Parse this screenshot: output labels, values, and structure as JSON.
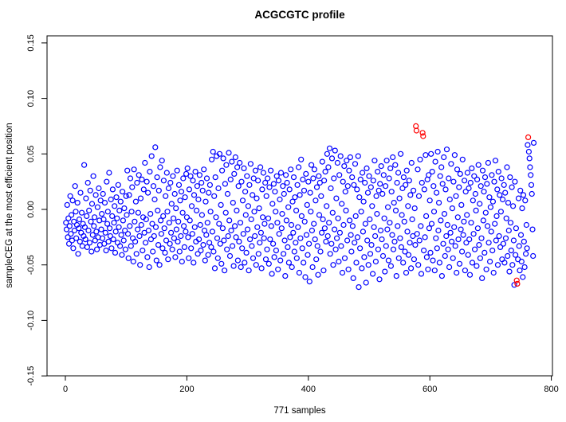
{
  "title": "ACGCGTC profile",
  "chart_data": {
    "type": "scatter",
    "title": "ACGCGTC profile",
    "xlabel": "771 samples",
    "ylabel": "sampleCEG at the most efficient position",
    "x_tick_labels": [
      "0",
      "200",
      "400",
      "600",
      "800"
    ],
    "x_ticks": [
      0,
      200,
      400,
      600,
      800
    ],
    "y_tick_labels": [
      "0.15",
      "0.10",
      "0.05",
      "0.00",
      "-0.05",
      "-0.10",
      "-0.15"
    ],
    "y_ticks": [
      0.15,
      0.1,
      0.05,
      0.0,
      -0.05,
      -0.1,
      -0.15
    ],
    "xlim": [
      -30,
      805
    ],
    "ylim": [
      -0.157,
      0.157
    ],
    "grid": false,
    "legend": "none",
    "point_color": "#0000ff",
    "outlier_color": "#ff0000",
    "n_samples": 771,
    "x_is_sample_index": true,
    "outlier_indices": [
      577,
      578,
      588,
      589,
      743,
      744,
      762
    ],
    "y": [
      -0.012,
      -0.018,
      0.004,
      -0.025,
      -0.008,
      -0.031,
      -0.015,
      0.012,
      -0.022,
      -0.005,
      -0.028,
      0.008,
      -0.035,
      -0.011,
      -0.019,
      0.021,
      -0.002,
      -0.026,
      -0.014,
      0.006,
      -0.04,
      -0.017,
      -0.009,
      -0.029,
      0.015,
      -0.021,
      -0.003,
      -0.033,
      -0.013,
      -0.024,
      0.04,
      -0.016,
      -0.027,
      0.01,
      -0.006,
      -0.034,
      0.024,
      -0.019,
      -0.001,
      -0.03,
      0.017,
      -0.011,
      -0.038,
      0.005,
      -0.023,
      0.03,
      -0.015,
      -0.007,
      -0.028,
      0.013,
      -0.02,
      -0.036,
      0.002,
      -0.025,
      0.019,
      -0.01,
      -0.032,
      0.008,
      -0.018,
      -0.004,
      -0.026,
      0.014,
      -0.009,
      -0.031,
      0.006,
      -0.021,
      -0.037,
      0.025,
      -0.013,
      -0.002,
      -0.029,
      0.033,
      -0.017,
      -0.024,
      0.009,
      -0.035,
      -0.006,
      0.018,
      -0.027,
      -0.012,
      0.003,
      -0.039,
      -0.02,
      0.011,
      -0.008,
      -0.03,
      0.022,
      -0.016,
      -0.001,
      -0.033,
      0.007,
      -0.023,
      -0.041,
      0.016,
      -0.01,
      -0.028,
      0.001,
      -0.019,
      -0.036,
      0.012,
      -0.005,
      0.035,
      -0.022,
      -0.044,
      0.013,
      -0.015,
      0.028,
      -0.033,
      -0.002,
      0.02,
      -0.026,
      -0.047,
      0.036,
      -0.011,
      -0.029,
      0.007,
      -0.04,
      0.024,
      -0.018,
      -0.003,
      0.031,
      -0.024,
      -0.05,
      0.01,
      -0.014,
      0.027,
      -0.037,
      -0.007,
      0.018,
      -0.021,
      0.042,
      -0.03,
      -0.009,
      0.025,
      -0.043,
      0.015,
      -0.019,
      -0.052,
      0.034,
      -0.004,
      -0.027,
      0.048,
      -0.013,
      -0.038,
      0.021,
      -0.024,
      0.009,
      0.056,
      -0.016,
      -0.046,
      0.029,
      -0.001,
      -0.032,
      0.017,
      -0.05,
      0.038,
      -0.01,
      -0.022,
      0.044,
      -0.035,
      -0.006,
      0.026,
      -0.017,
      -0.039,
      0.012,
      -0.028,
      0.033,
      -0.002,
      -0.045,
      0.019,
      -0.012,
      -0.031,
      0.024,
      -0.021,
      0.005,
      -0.036,
      0.03,
      -0.008,
      -0.026,
      0.014,
      -0.043,
      0.001,
      -0.018,
      0.035,
      -0.029,
      -0.011,
      0.022,
      -0.038,
      0.008,
      -0.024,
      0.016,
      -0.047,
      -0.003,
      0.028,
      -0.015,
      -0.034,
      0.011,
      -0.02,
      0.032,
      -0.007,
      0.037,
      -0.025,
      -0.044,
      0.018,
      -0.01,
      0.03,
      -0.035,
      0.003,
      -0.022,
      0.026,
      -0.048,
      0.013,
      -0.016,
      0.034,
      -0.029,
      -0.001,
      0.021,
      -0.04,
      0.009,
      -0.027,
      0.031,
      -0.014,
      -0.037,
      0.024,
      -0.005,
      0.017,
      -0.032,
      0.036,
      -0.019,
      -0.046,
      0.007,
      -0.023,
      0.028,
      -0.012,
      -0.041,
      0.015,
      -0.03,
      0.022,
      -0.002,
      -0.034,
      0.045,
      -0.02,
      0.052,
      -0.038,
      0.012,
      -0.053,
      0.029,
      -0.007,
      0.048,
      -0.026,
      -0.044,
      0.019,
      -0.013,
      0.05,
      -0.031,
      0.004,
      -0.049,
      0.035,
      -0.017,
      0.046,
      -0.028,
      -0.055,
      0.023,
      -0.003,
      0.04,
      -0.036,
      0.014,
      -0.024,
      0.051,
      -0.01,
      -0.042,
      0.027,
      -0.019,
      0.043,
      -0.033,
      0.006,
      -0.051,
      0.032,
      -0.015,
      0.047,
      -0.025,
      -0.001,
      0.038,
      -0.046,
      0.021,
      -0.029,
      0.042,
      -0.012,
      -0.052,
      0.025,
      -0.035,
      0.008,
      -0.022,
      0.037,
      -0.048,
      0.016,
      -0.005,
      -0.039,
      0.03,
      -0.018,
      0.003,
      -0.055,
      0.022,
      -0.027,
      0.041,
      -0.009,
      -0.033,
      0.013,
      -0.044,
      0.028,
      -0.002,
      -0.024,
      0.035,
      -0.05,
      0.01,
      -0.016,
      0.026,
      -0.04,
      0.001,
      -0.03,
      0.038,
      -0.021,
      -0.053,
      0.018,
      -0.007,
      0.033,
      -0.026,
      -0.013,
      0.024,
      -0.045,
      0.012,
      -0.036,
      0.028,
      -0.008,
      -0.049,
      0.02,
      -0.027,
      0.035,
      -0.015,
      -0.058,
      0.005,
      -0.031,
      0.023,
      -0.043,
      0.016,
      -0.002,
      -0.037,
      0.03,
      -0.012,
      -0.054,
      0.026,
      -0.022,
      0.009,
      -0.046,
      0.033,
      -0.017,
      -0.004,
      0.021,
      -0.04,
      0.014,
      -0.028,
      -0.06,
      0.031,
      -0.01,
      0.024,
      -0.034,
      0.002,
      -0.048,
      0.018,
      -0.025,
      0.036,
      -0.014,
      -0.052,
      0.007,
      -0.021,
      0.029,
      -0.038,
      0.011,
      -0.03,
      -0.001,
      -0.044,
      0.022,
      -0.016,
      0.038,
      -0.057,
      0.013,
      -0.026,
      0.045,
      -0.006,
      -0.035,
      0.027,
      -0.048,
      0.017,
      -0.011,
      -0.061,
      0.032,
      -0.023,
      0.004,
      -0.041,
      0.025,
      -0.031,
      -0.065,
      0.015,
      -0.002,
      0.04,
      -0.019,
      -0.052,
      0.028,
      -0.013,
      0.036,
      -0.027,
      0.008,
      -0.045,
      0.02,
      -0.033,
      -0.059,
      0.03,
      -0.005,
      0.024,
      -0.038,
      0.012,
      -0.021,
      0.043,
      -0.009,
      -0.055,
      0.026,
      -0.017,
      0.034,
      -0.029,
      0.003,
      0.05,
      -0.024,
      0.038,
      -0.012,
      0.055,
      -0.04,
      0.019,
      -0.031,
      0.046,
      -0.003,
      -0.05,
      0.028,
      -0.018,
      0.053,
      -0.036,
      0.01,
      -0.026,
      0.042,
      -0.008,
      -0.047,
      0.031,
      -0.021,
      0.048,
      -0.033,
      0.005,
      -0.057,
      0.025,
      -0.014,
      0.039,
      -0.044,
      0.016,
      -0.001,
      0.044,
      -0.028,
      0.021,
      -0.054,
      0.035,
      -0.01,
      0.047,
      -0.023,
      -0.038,
      0.029,
      -0.015,
      -0.062,
      0.022,
      -0.03,
      0.041,
      -0.006,
      -0.048,
      0.018,
      -0.025,
      0.048,
      -0.07,
      0.011,
      -0.035,
      0.027,
      -0.002,
      -0.053,
      0.033,
      -0.02,
      0.007,
      -0.043,
      0.024,
      -0.013,
      -0.066,
      0.037,
      -0.028,
      0.015,
      -0.05,
      0.03,
      -0.009,
      -0.04,
      0.02,
      -0.032,
      0.003,
      -0.058,
      0.026,
      -0.016,
      0.044,
      -0.024,
      -0.047,
      0.012,
      -0.004,
      0.034,
      -0.036,
      0.017,
      -0.063,
      0.023,
      -0.019,
      0.039,
      -0.027,
      0.014,
      -0.042,
      0.031,
      -0.008,
      -0.056,
      0.021,
      -0.033,
      0.044,
      -0.018,
      0.002,
      -0.046,
      0.028,
      -0.012,
      0.037,
      -0.051,
      0.016,
      -0.023,
      0.047,
      -0.036,
      0.006,
      -0.029,
      0.04,
      -0.001,
      -0.06,
      0.024,
      -0.015,
      0.033,
      -0.044,
      0.01,
      -0.026,
      0.05,
      -0.034,
      -0.005,
      0.019,
      -0.048,
      0.029,
      -0.011,
      -0.038,
      0.022,
      -0.057,
      0.035,
      -0.02,
      0.003,
      -0.041,
      0.026,
      -0.03,
      0.013,
      -0.053,
      0.042,
      -0.009,
      -0.024,
      0.017,
      -0.045,
      0.001,
      -0.032,
      0.075,
      0.071,
      -0.022,
      0.036,
      -0.05,
      0.012,
      -0.028,
      0.045,
      -0.015,
      -0.058,
      0.024,
      0.069,
      0.066,
      -0.037,
      0.018,
      -0.025,
      0.049,
      -0.006,
      -0.043,
      0.027,
      -0.054,
      0.031,
      -0.017,
      0.008,
      -0.039,
      0.05,
      -0.013,
      0.034,
      -0.046,
      0.021,
      -0.002,
      -0.055,
      0.043,
      -0.026,
      0.015,
      -0.035,
      0.052,
      -0.019,
      0.006,
      -0.048,
      0.03,
      -0.01,
      0.038,
      -0.06,
      0.023,
      -0.031,
      0.047,
      -0.004,
      -0.042,
      0.018,
      -0.024,
      0.054,
      -0.014,
      -0.036,
      0.028,
      -0.052,
      0.009,
      -0.021,
      0.041,
      -0.029,
      0.001,
      -0.044,
      0.025,
      -0.016,
      0.049,
      -0.033,
      0.012,
      -0.057,
      0.036,
      -0.007,
      -0.027,
      0.02,
      -0.049,
      0.032,
      -0.018,
      0.004,
      -0.038,
      0.045,
      -0.023,
      -0.011,
      0.026,
      -0.055,
      0.016,
      -0.03,
      -0.005,
      0.033,
      -0.041,
      0.019,
      -0.027,
      -0.059,
      0.024,
      -0.012,
      0.037,
      -0.048,
      0.008,
      -0.022,
      0.03,
      -0.036,
      0.014,
      -0.001,
      -0.051,
      0.027,
      -0.017,
      0.04,
      -0.032,
      0.005,
      -0.044,
      0.021,
      -0.026,
      -0.062,
      0.035,
      -0.01,
      0.016,
      -0.039,
      0.029,
      -0.003,
      -0.054,
      0.023,
      -0.015,
      0.042,
      -0.03,
      0.011,
      -0.047,
      0.002,
      -0.02,
      0.031,
      -0.037,
      0.007,
      -0.057,
      0.025,
      -0.013,
      0.044,
      -0.028,
      -0.006,
      0.018,
      -0.05,
      0.034,
      -0.024,
      0.013,
      -0.034,
      -0.002,
      0.028,
      -0.045,
      0.009,
      -0.031,
      0.022,
      -0.048,
      0.015,
      -0.026,
      -0.008,
      0.038,
      -0.042,
      0.006,
      -0.019,
      -0.056,
      0.029,
      -0.012,
      -0.037,
      0.02,
      -0.05,
      0.003,
      -0.028,
      -0.068,
      0.025,
      -0.041,
      -0.017,
      -0.064,
      -0.067,
      -0.045,
      0.01,
      -0.033,
      -0.055,
      0.017,
      -0.023,
      -0.047,
      0.001,
      -0.061,
      0.013,
      -0.029,
      -0.052,
      0.008,
      -0.04,
      -0.014,
      -0.035,
      0.058,
      0.065,
      0.052,
      0.046,
      0.038,
      0.031,
      0.022,
      0.014,
      -0.018,
      -0.042,
      0.06
    ]
  }
}
